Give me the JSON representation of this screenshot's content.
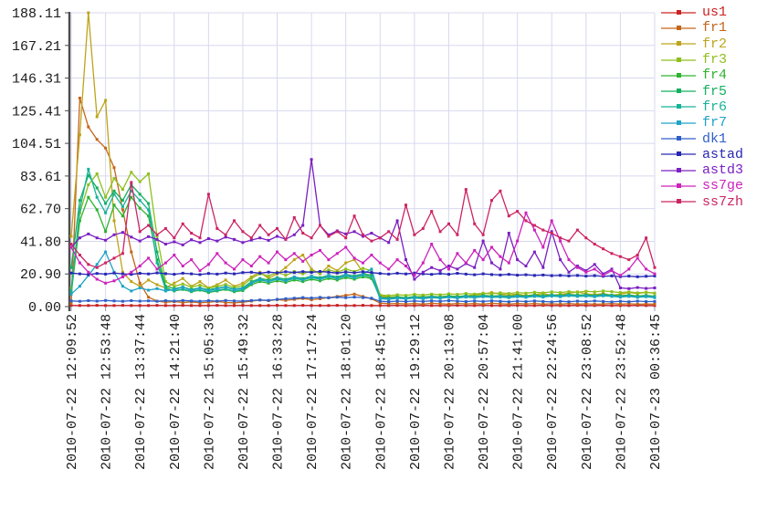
{
  "chart_data": {
    "type": "line",
    "title": "",
    "xlabel": "",
    "ylabel": "",
    "ylim": [
      0,
      188.11
    ],
    "grid": true,
    "legend_position": "right",
    "y_tick_labels": [
      "0.00",
      "20.90",
      "41.80",
      "62.70",
      "83.61",
      "104.51",
      "125.41",
      "146.31",
      "167.21",
      "188.11"
    ],
    "x_tick_labels": [
      "2010-07-22 12:09:52",
      "2010-07-22 12:53:48",
      "2010-07-22 13:37:44",
      "2010-07-22 14:21:40",
      "2010-07-22 15:05:36",
      "2010-07-22 15:49:32",
      "2010-07-22 16:33:28",
      "2010-07-22 17:17:24",
      "2010-07-22 18:01:20",
      "2010-07-22 18:45:16",
      "2010-07-22 19:29:12",
      "2010-07-22 20:13:08",
      "2010-07-22 20:57:04",
      "2010-07-22 21:41:00",
      "2010-07-22 22:24:56",
      "2010-07-22 23:08:52",
      "2010-07-22 23:52:48",
      "2010-07-23 00:36:45"
    ],
    "points_per_tick_interval": 4,
    "series": [
      {
        "name": "us1",
        "color": "#cc2222",
        "values": [
          0.8,
          0.7,
          0.7,
          0.8,
          0.7,
          0.7,
          0.8,
          0.7,
          0.7,
          0.7,
          0.8,
          0.7,
          0.7,
          0.8,
          0.7,
          0.7,
          0.7,
          0.8,
          0.7,
          0.7,
          0.8,
          0.7,
          0.7,
          0.7,
          0.8,
          0.7,
          0.7,
          0.8,
          0.7,
          0.7,
          0.7,
          0.8,
          0.7,
          0.7,
          0.8,
          0.7,
          0.7,
          0.7,
          0.8,
          0.7,
          0.7,
          0.8,
          0.7,
          0.7,
          0.7,
          0.8,
          0.7,
          0.7,
          0.8,
          0.7,
          0.7,
          0.7,
          0.8,
          0.7,
          0.7,
          0.8,
          0.7,
          0.7,
          0.7,
          0.8,
          0.7,
          0.7,
          0.8,
          0.7,
          0.7,
          0.7,
          0.8,
          0.7,
          0.7
        ]
      },
      {
        "name": "fr1",
        "color": "#c46519",
        "values": [
          2.0,
          133.5,
          115.0,
          107.0,
          101.5,
          89.0,
          62.0,
          35.0,
          15.0,
          6.0,
          3.5,
          2.8,
          3.2,
          2.6,
          3.0,
          2.4,
          2.8,
          3.3,
          2.6,
          2.4,
          2.8,
          3.5,
          4.2,
          3.8,
          4.5,
          4.0,
          4.6,
          5.2,
          4.4,
          5.0,
          5.8,
          6.5,
          7.2,
          8.0,
          6.5,
          5.0,
          2.2,
          1.8,
          2.0,
          1.7,
          1.9,
          1.6,
          2.1,
          1.8,
          1.6,
          2.0,
          1.7,
          1.9,
          1.6,
          2.1,
          1.8,
          1.6,
          1.9,
          1.7,
          2.0,
          1.6,
          1.8,
          1.5,
          1.9,
          1.6,
          1.8,
          1.5,
          1.7,
          1.9,
          1.6,
          1.8,
          1.5,
          1.7,
          1.6
        ]
      },
      {
        "name": "fr2",
        "color": "#bda41a",
        "values": [
          45.0,
          110.0,
          188.1,
          121.5,
          132.0,
          55.0,
          22.0,
          16.0,
          13.0,
          17.0,
          14.0,
          12.0,
          15.0,
          18.0,
          13.0,
          16.0,
          12.0,
          14.0,
          17.0,
          13.0,
          15.0,
          19.0,
          22.0,
          18.0,
          21.0,
          25.0,
          30.0,
          33.0,
          24.0,
          21.0,
          26.0,
          23.0,
          28.0,
          30.0,
          22.0,
          18.0,
          7.0,
          6.0,
          6.5,
          5.5,
          6.0,
          6.5,
          5.8,
          6.2,
          7.0,
          6.4,
          6.8,
          7.5,
          8.2,
          9.0,
          8.0,
          7.4,
          8.0,
          7.0,
          7.6,
          8.4,
          7.2,
          7.8,
          8.6,
          9.4,
          8.2,
          7.6,
          8.4,
          7.2,
          8.0,
          9.0,
          8.4,
          9.2,
          8.6
        ]
      },
      {
        "name": "fr3",
        "color": "#8fbf1c",
        "values": [
          12.0,
          60.0,
          78.0,
          85.0,
          70.0,
          82.0,
          75.0,
          86.0,
          80.0,
          85.0,
          45.0,
          16.0,
          13.0,
          14.5,
          12.5,
          13.8,
          11.8,
          13.0,
          14.2,
          12.2,
          13.5,
          18.0,
          21.0,
          19.5,
          22.0,
          20.0,
          22.5,
          21.0,
          23.0,
          21.5,
          23.5,
          22.0,
          24.0,
          22.5,
          24.5,
          23.0,
          7.5,
          7.0,
          7.6,
          7.2,
          7.8,
          7.4,
          8.0,
          7.6,
          8.2,
          7.8,
          8.4,
          8.0,
          8.6,
          8.2,
          8.8,
          8.4,
          9.0,
          8.6,
          9.2,
          8.8,
          9.4,
          9.0,
          9.6,
          9.2,
          9.8,
          9.4,
          10.0,
          9.6,
          9.0,
          9.4,
          8.8,
          9.2,
          8.6
        ]
      },
      {
        "name": "fr4",
        "color": "#2db32d",
        "values": [
          8.0,
          55.0,
          70.0,
          62.0,
          48.0,
          65.0,
          58.0,
          70.0,
          63.0,
          58.0,
          30.0,
          12.0,
          10.0,
          11.0,
          9.5,
          10.5,
          9.0,
          10.0,
          11.0,
          9.5,
          10.2,
          14.0,
          16.0,
          15.0,
          16.5,
          15.5,
          17.0,
          16.0,
          17.5,
          16.5,
          18.0,
          17.0,
          18.5,
          17.5,
          19.0,
          18.0,
          6.0,
          5.6,
          6.2,
          5.8,
          6.4,
          6.0,
          6.6,
          6.2,
          6.8,
          6.4,
          7.0,
          6.6,
          7.2,
          6.8,
          7.0,
          6.6,
          7.2,
          6.8,
          7.4,
          7.0,
          7.6,
          7.2,
          7.8,
          7.4,
          7.6,
          7.2,
          7.8,
          7.4,
          7.0,
          7.4,
          6.8,
          7.2,
          6.6
        ]
      },
      {
        "name": "fr5",
        "color": "#14b060",
        "values": [
          25.0,
          68.0,
          84.0,
          76.0,
          66.0,
          74.0,
          68.0,
          78.0,
          72.0,
          66.0,
          35.0,
          13.0,
          11.5,
          12.5,
          11.0,
          12.0,
          10.8,
          11.8,
          12.8,
          11.2,
          12.0,
          16.0,
          18.0,
          17.0,
          18.5,
          17.5,
          19.0,
          18.0,
          19.5,
          18.5,
          20.0,
          19.0,
          20.5,
          19.5,
          21.0,
          20.0,
          5.5,
          5.2,
          5.8,
          5.4,
          6.0,
          5.6,
          6.2,
          5.8,
          6.4,
          6.0,
          6.6,
          6.2,
          6.8,
          6.4,
          6.6,
          6.2,
          6.8,
          6.4,
          7.0,
          6.6,
          7.2,
          6.8,
          7.4,
          7.0,
          7.2,
          6.8,
          7.4,
          7.0,
          6.6,
          7.0,
          6.4,
          6.8,
          6.2
        ]
      },
      {
        "name": "fr6",
        "color": "#17b397",
        "values": [
          10.0,
          62.0,
          88.0,
          70.0,
          60.0,
          72.0,
          64.0,
          74.0,
          68.0,
          62.0,
          28.0,
          11.0,
          10.2,
          11.2,
          9.8,
          10.8,
          9.4,
          10.4,
          11.4,
          9.9,
          10.8,
          15.0,
          17.0,
          16.0,
          17.5,
          16.5,
          18.0,
          17.0,
          18.5,
          17.5,
          19.0,
          18.0,
          19.5,
          18.5,
          20.0,
          19.0,
          5.0,
          4.7,
          5.3,
          4.9,
          5.5,
          5.1,
          5.7,
          5.3,
          5.9,
          5.5,
          6.1,
          5.7,
          6.3,
          5.9,
          6.1,
          5.7,
          6.3,
          5.9,
          6.5,
          6.1,
          6.7,
          6.3,
          6.9,
          6.5,
          6.7,
          6.3,
          6.9,
          6.5,
          6.1,
          6.5,
          5.9,
          6.3,
          5.7
        ]
      },
      {
        "name": "fr7",
        "color": "#1fa3c6",
        "values": [
          8.0,
          13.0,
          20.0,
          27.0,
          35.0,
          22.0,
          13.0,
          10.0,
          12.0,
          10.5,
          11.5,
          10.0,
          11.0,
          12.5,
          10.5,
          11.8,
          10.2,
          11.4,
          12.6,
          10.8,
          11.6,
          15.0,
          17.5,
          16.0,
          18.0,
          16.5,
          19.0,
          17.0,
          19.5,
          17.5,
          20.0,
          18.0,
          20.5,
          18.5,
          21.0,
          24.0,
          5.5,
          5.0,
          5.6,
          5.2,
          5.8,
          5.4,
          6.0,
          5.6,
          6.2,
          5.8,
          6.4,
          6.0,
          6.6,
          6.2,
          6.4,
          6.0,
          6.6,
          6.2,
          6.8,
          6.4,
          7.0,
          6.6,
          7.2,
          6.8,
          7.0,
          6.6,
          7.2,
          6.8,
          6.4,
          6.8,
          6.2,
          6.6,
          6.0
        ]
      },
      {
        "name": "dk1",
        "color": "#2e5fc9",
        "values": [
          3.6,
          3.4,
          3.8,
          3.5,
          3.9,
          3.6,
          3.4,
          3.8,
          3.5,
          3.7,
          3.4,
          3.8,
          3.5,
          3.9,
          3.6,
          3.4,
          3.8,
          3.5,
          3.9,
          3.6,
          3.5,
          3.9,
          4.2,
          4.0,
          4.6,
          5.0,
          5.4,
          5.8,
          5.5,
          5.9,
          5.6,
          6.0,
          5.7,
          6.1,
          5.8,
          5.4,
          3.4,
          3.1,
          3.5,
          3.2,
          3.6,
          3.3,
          3.7,
          3.4,
          3.8,
          3.5,
          3.2,
          3.6,
          3.3,
          3.7,
          3.4,
          3.1,
          3.5,
          3.2,
          3.6,
          3.3,
          3.0,
          3.4,
          3.1,
          3.5,
          3.2,
          3.6,
          3.3,
          3.0,
          3.4,
          3.1,
          3.5,
          3.2,
          3.3
        ]
      },
      {
        "name": "astad",
        "color": "#2727b5",
        "values": [
          21.5,
          21.0,
          20.5,
          21.2,
          20.8,
          21.5,
          21.0,
          20.6,
          21.3,
          20.9,
          21.6,
          21.1,
          20.7,
          21.4,
          21.0,
          20.5,
          21.2,
          20.8,
          21.5,
          21.0,
          21.8,
          22.0,
          21.4,
          22.1,
          21.6,
          22.3,
          21.8,
          22.4,
          21.9,
          22.5,
          22.0,
          21.5,
          22.2,
          21.7,
          22.3,
          21.8,
          21.2,
          20.8,
          21.4,
          20.9,
          21.5,
          21.0,
          20.6,
          21.2,
          20.7,
          21.3,
          20.8,
          20.4,
          21.0,
          20.5,
          20.2,
          20.6,
          20.1,
          20.4,
          19.9,
          20.2,
          19.8,
          20.0,
          19.6,
          19.9,
          19.5,
          19.8,
          19.4,
          19.6,
          19.2,
          19.5,
          19.1,
          19.4,
          19.6
        ]
      },
      {
        "name": "astd3",
        "color": "#7a1fc2",
        "values": [
          38.0,
          44.0,
          46.5,
          44.0,
          42.5,
          46.0,
          47.5,
          44.5,
          42.0,
          44.8,
          43.0,
          40.0,
          41.5,
          39.5,
          42.8,
          41.0,
          43.5,
          42.0,
          44.5,
          43.0,
          41.0,
          42.6,
          44.0,
          42.4,
          45.0,
          43.2,
          46.0,
          52.0,
          94.2,
          52.0,
          46.0,
          48.5,
          46.5,
          48.0,
          45.0,
          47.0,
          44.0,
          41.0,
          55.0,
          30.0,
          17.5,
          22.0,
          25.0,
          23.0,
          26.0,
          24.0,
          27.5,
          25.0,
          42.0,
          28.0,
          24.0,
          47.0,
          30.0,
          26.0,
          35.0,
          25.0,
          48.0,
          30.0,
          22.0,
          26.0,
          23.0,
          27.0,
          21.0,
          24.0,
          12.0,
          11.5,
          12.2,
          11.6,
          12.0
        ]
      },
      {
        "name": "ss7ge",
        "color": "#cc22bb",
        "values": [
          38.0,
          28.0,
          22.0,
          17.5,
          15.0,
          16.5,
          19.0,
          22.0,
          26.0,
          31.0,
          24.0,
          28.0,
          33.0,
          26.0,
          30.0,
          23.0,
          27.0,
          34.0,
          28.0,
          24.0,
          30.0,
          26.0,
          32.0,
          28.0,
          35.0,
          30.0,
          34.0,
          29.0,
          33.0,
          36.0,
          30.0,
          34.0,
          38.0,
          31.0,
          28.0,
          33.0,
          28.0,
          24.0,
          30.0,
          26.0,
          20.0,
          28.0,
          40.0,
          30.0,
          24.0,
          34.0,
          28.0,
          36.0,
          30.0,
          38.0,
          32.0,
          28.0,
          42.0,
          60.0,
          49.0,
          38.0,
          55.0,
          42.0,
          30.0,
          25.0,
          22.0,
          24.0,
          20.0,
          23.0,
          20.0,
          24.0,
          31.0,
          24.0,
          21.0
        ]
      },
      {
        "name": "ss7zh",
        "color": "#cc2463",
        "values": [
          40.0,
          33.0,
          27.0,
          25.0,
          28.0,
          31.0,
          34.0,
          79.5,
          48.0,
          52.0,
          46.0,
          50.0,
          44.0,
          53.0,
          47.0,
          44.0,
          72.0,
          50.0,
          46.0,
          55.0,
          48.0,
          44.0,
          52.0,
          46.0,
          50.0,
          43.0,
          57.0,
          47.0,
          44.0,
          52.0,
          45.0,
          48.0,
          44.0,
          58.0,
          46.0,
          42.0,
          44.0,
          48.0,
          43.0,
          65.0,
          46.0,
          50.0,
          61.0,
          48.0,
          53.0,
          46.0,
          75.0,
          53.0,
          46.0,
          68.0,
          74.0,
          58.0,
          61.0,
          55.0,
          52.0,
          49.0,
          47.0,
          44.0,
          42.0,
          49.0,
          44.0,
          40.0,
          37.0,
          34.0,
          32.0,
          30.0,
          33.0,
          44.0,
          25.0
        ]
      }
    ]
  },
  "colors": {
    "background": "#ffffff",
    "grid": "#d8d8f0",
    "axis": "#4d4d4d",
    "tick_text": "#1a1a1a"
  }
}
